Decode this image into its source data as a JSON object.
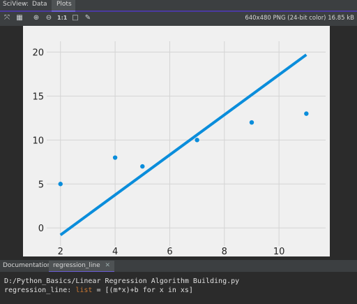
{
  "tabbar": {
    "label": "SciView:",
    "tabs": [
      "Data",
      "Plots"
    ],
    "active_tab": "Plots"
  },
  "toolbar": {
    "icons": [
      "fit-icon",
      "grid-icon",
      "zoom-in-icon",
      "zoom-out-icon",
      "actual-size-icon",
      "background-icon",
      "eyedropper-icon"
    ],
    "actual_size_label": "1:1",
    "image_info": "640x480 PNG (24-bit color) 16.85 kB"
  },
  "chart_data": {
    "type": "scatter",
    "title": "",
    "xlabel": "",
    "ylabel": "",
    "xlim": [
      1.7,
      11.4
    ],
    "ylim": [
      -1.1,
      20.6
    ],
    "x_ticks": [
      2,
      4,
      6,
      8,
      10
    ],
    "y_ticks": [
      0,
      5,
      10,
      15,
      20
    ],
    "grid": true,
    "series": [
      {
        "type": "scatter",
        "x": [
          2,
          4,
          5,
          7,
          9,
          11
        ],
        "y": [
          5,
          8,
          7,
          10,
          12,
          13
        ],
        "color": "#0a8ddb"
      },
      {
        "type": "line",
        "x": [
          2,
          11
        ],
        "y": [
          -0.8,
          19.7
        ],
        "color": "#0a8ddb"
      }
    ]
  },
  "documentation": {
    "label": "Documentation:",
    "tab": "regression_line",
    "path": "D:/Python_Basics/Linear Regression Algorithm Building.py",
    "sig_name": "regression_line: ",
    "sig_type": "list",
    "sig_value": " = [(m*x)+b for x in xs]"
  },
  "colors": {
    "accent": "#6a5cd6",
    "plot_color": "#0a8ddb"
  }
}
